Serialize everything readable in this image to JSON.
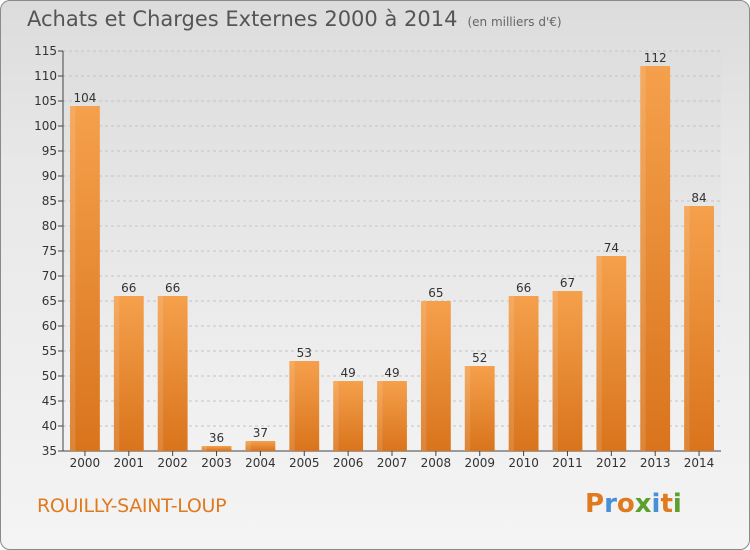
{
  "header": {
    "title": "Achats et Charges Externes 2000 à 2014",
    "subtitle": "(en milliers d'€)"
  },
  "footer": {
    "place": "ROUILLY-SAINT-LOUP",
    "logo": "Proxiti"
  },
  "colors": {
    "bar_light": "#f5a04c",
    "bar_dark": "#d9741c",
    "place_text": "#e07a1e",
    "logo_letters": [
      "#e07a1e",
      "#4a90d9",
      "#e07a1e",
      "#5aa02c",
      "#4a90d9",
      "#e07a1e",
      "#5aa02c"
    ]
  },
  "chart_data": {
    "type": "bar",
    "title": "Achats et Charges Externes 2000 à 2014",
    "subtitle": "(en milliers d'€)",
    "categories": [
      "2000",
      "2001",
      "2002",
      "2003",
      "2004",
      "2005",
      "2006",
      "2007",
      "2008",
      "2009",
      "2010",
      "2011",
      "2012",
      "2013",
      "2014"
    ],
    "values": [
      104,
      66,
      66,
      36,
      37,
      53,
      49,
      49,
      65,
      52,
      66,
      67,
      74,
      112,
      84
    ],
    "ylim": [
      35,
      115
    ],
    "yticks": [
      35,
      40,
      45,
      50,
      55,
      60,
      65,
      70,
      75,
      80,
      85,
      90,
      95,
      100,
      105,
      110,
      115
    ],
    "grid": true,
    "xlabel": "",
    "ylabel": ""
  }
}
